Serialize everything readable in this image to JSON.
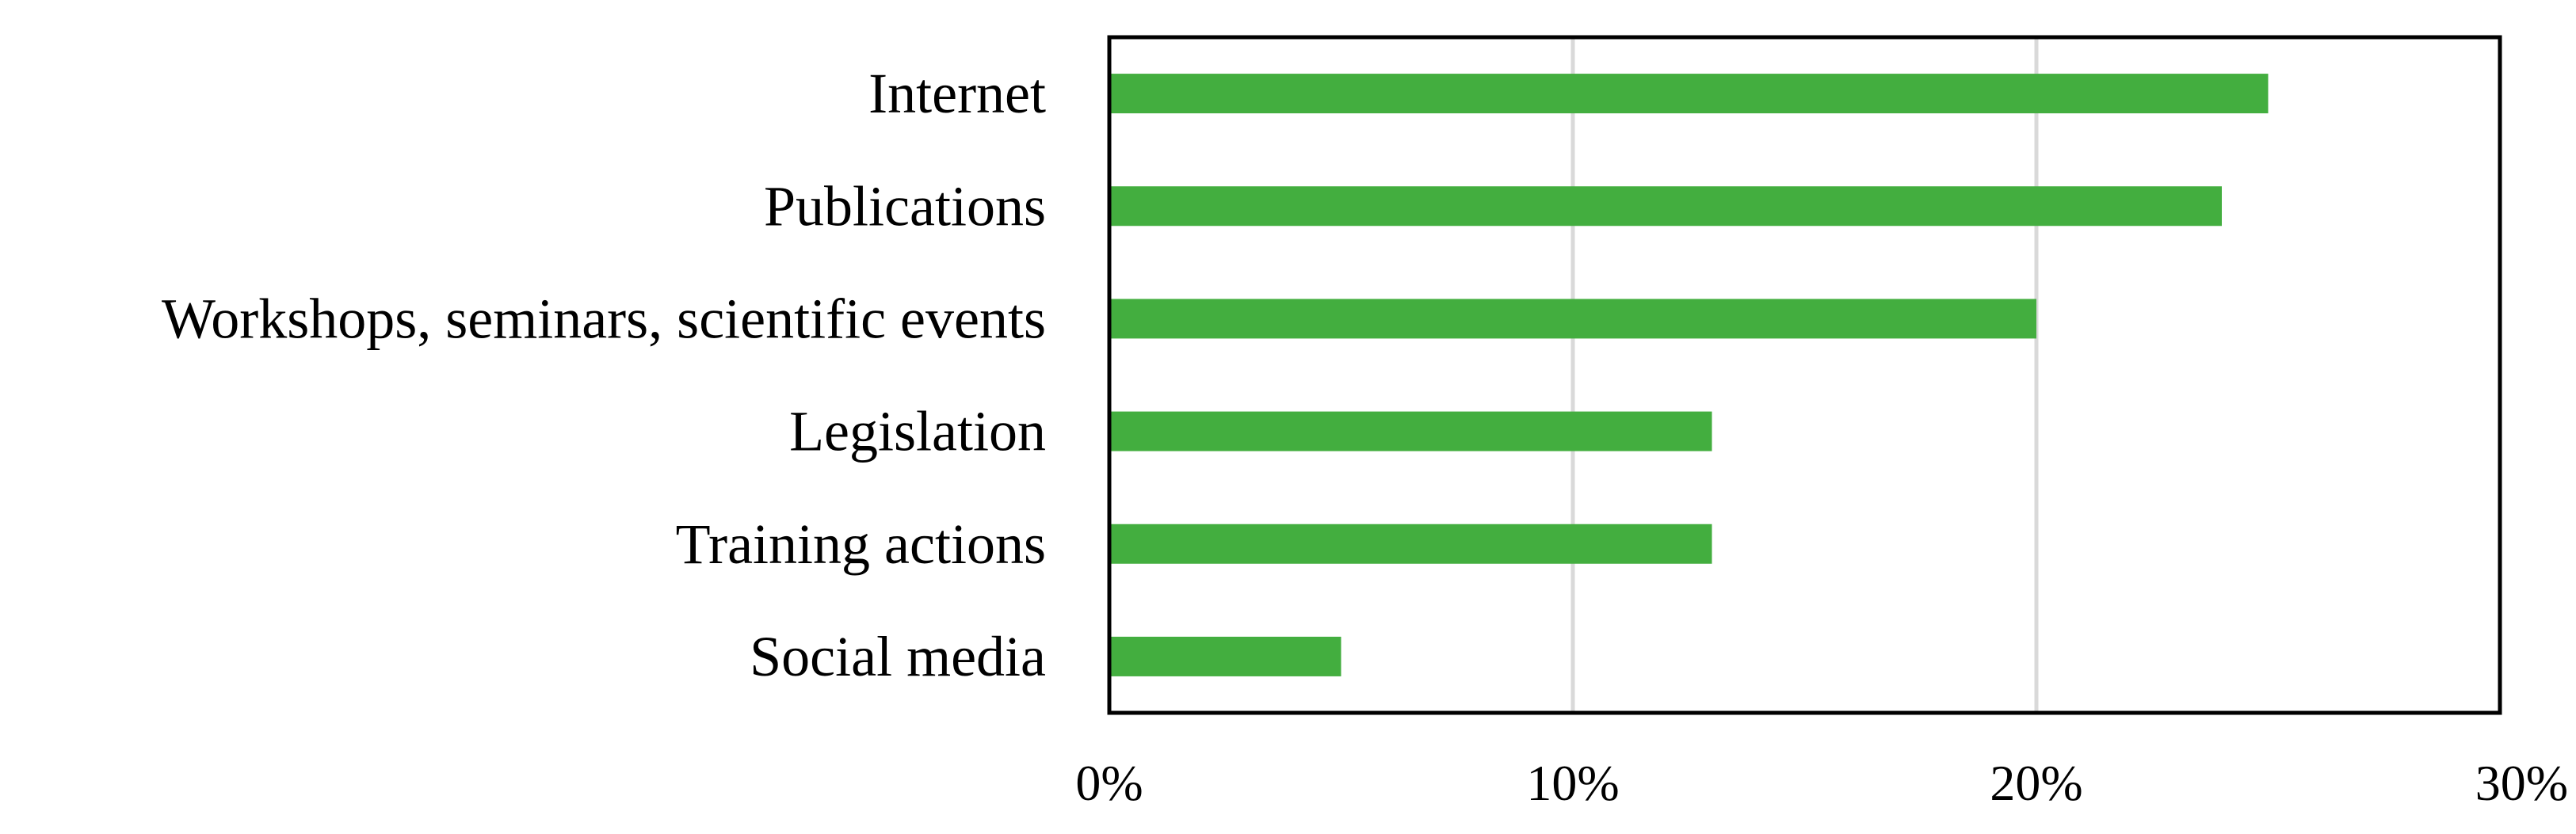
{
  "chart_data": {
    "type": "bar",
    "orientation": "horizontal",
    "title": "",
    "xlabel": "",
    "ylabel": "",
    "categories": [
      "Internet",
      "Publications",
      "Workshops, seminars, scientific events",
      "Legislation",
      "Training actions",
      "Social media"
    ],
    "values": [
      25,
      24,
      20,
      13,
      13,
      5
    ],
    "xlim": [
      0,
      30
    ],
    "x_ticks": [
      0,
      10,
      20,
      30
    ],
    "x_tick_labels": [
      "0%",
      "10%",
      "20%",
      "30%"
    ],
    "grid": "vertical",
    "legend": "none",
    "colors": {
      "bar": "#43ae3f",
      "grid": "#d9d9d9",
      "frame": "#000000"
    }
  }
}
